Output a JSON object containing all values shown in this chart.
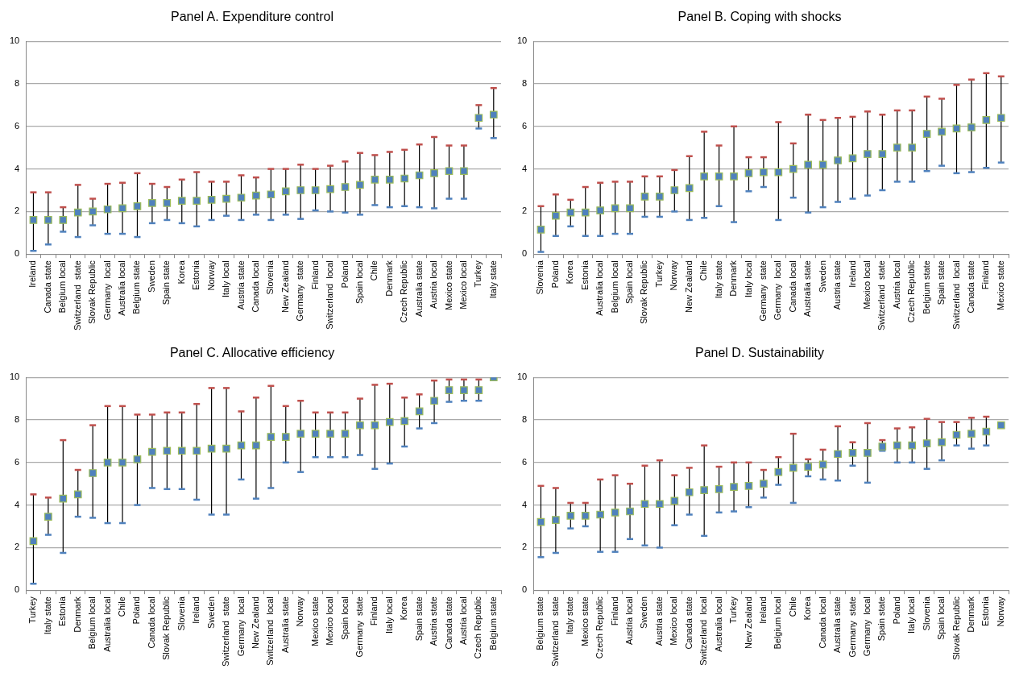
{
  "chart_data": [
    {
      "type": "scatter",
      "title": "Panel A. Expenditure control",
      "categories": [
        "Ireland",
        "Canada state",
        "Belgium local",
        "Switzerland  state",
        "Slovak Republic",
        "Germany  local",
        "Australia local",
        "Belgium state",
        "Sweden",
        "Spain state",
        "Korea",
        "Estonia",
        "Norway",
        "Italy local",
        "Austria state",
        "Canada local",
        "Slovenia",
        "New Zealand",
        "Germany  state",
        "Finland",
        "Switzerland  local",
        "Poland",
        "Spain local",
        "Chile",
        "Denmark",
        "Czech Republic",
        "Australia state",
        "Austria local",
        "Mexico state",
        "Mexico local",
        "Turkey",
        "Italy state"
      ],
      "series": [
        {
          "color": "#4f81bd",
          "values": [
            1.6,
            1.6,
            1.6,
            1.95,
            2.0,
            2.1,
            2.15,
            2.25,
            2.4,
            2.4,
            2.5,
            2.5,
            2.55,
            2.6,
            2.65,
            2.75,
            2.8,
            2.95,
            3.0,
            3.0,
            3.05,
            3.15,
            3.25,
            3.5,
            3.5,
            3.55,
            3.7,
            3.8,
            3.9,
            3.9,
            6.4,
            6.55
          ],
          "errors": [
            [
              0.15,
              2.9
            ],
            [
              0.45,
              2.9
            ],
            [
              1.05,
              2.2
            ],
            [
              0.8,
              3.25
            ],
            [
              1.35,
              2.6
            ],
            [
              0.95,
              3.3
            ],
            [
              0.95,
              3.35
            ],
            [
              0.8,
              3.8
            ],
            [
              1.45,
              3.3
            ],
            [
              1.6,
              3.15
            ],
            [
              1.45,
              3.5
            ],
            [
              1.3,
              3.85
            ],
            [
              1.6,
              3.4
            ],
            [
              1.8,
              3.4
            ],
            [
              1.6,
              3.7
            ],
            [
              1.85,
              3.6
            ],
            [
              1.6,
              4.0
            ],
            [
              1.85,
              4.0
            ],
            [
              1.65,
              4.2
            ],
            [
              2.05,
              4.0
            ],
            [
              2.0,
              4.15
            ],
            [
              1.95,
              4.35
            ],
            [
              1.85,
              4.75
            ],
            [
              2.3,
              4.65
            ],
            [
              2.2,
              4.8
            ],
            [
              2.25,
              4.9
            ],
            [
              2.2,
              5.15
            ],
            [
              2.15,
              5.5
            ],
            [
              2.6,
              5.1
            ],
            [
              2.6,
              5.1
            ],
            [
              5.9,
              7.0
            ],
            [
              5.45,
              7.8
            ]
          ]
        }
      ],
      "ylim": [
        0,
        10
      ],
      "yticks": [
        0,
        2,
        4,
        6,
        8,
        10
      ],
      "grid": "y",
      "legend": false,
      "marker": "square"
    },
    {
      "type": "scatter",
      "title": "Panel B. Coping with shocks",
      "categories": [
        "Slovenia",
        "Poland",
        "Korea",
        "Estonia",
        "Australia local",
        "Belgium local",
        "Spain local",
        "Slovak Republic",
        "Turkey",
        "Norway",
        "New Zealand",
        "Chile",
        "Italy state",
        "Denmark",
        "Italy local",
        "Germany  state",
        "Germany  local",
        "Canada local",
        "Australia state",
        "Sweden",
        "Austria state",
        "Ireland",
        "Mexico local",
        "Switzerland  state",
        "Austria local",
        "Czech Republic",
        "Belgium state",
        "Spain state",
        "Switzerland  local",
        "Canada state",
        "Finland",
        "Mexico state"
      ],
      "series": [
        {
          "color": "#4f81bd",
          "values": [
            1.15,
            1.8,
            1.95,
            1.95,
            2.05,
            2.15,
            2.15,
            2.7,
            2.7,
            3.0,
            3.1,
            3.65,
            3.65,
            3.65,
            3.8,
            3.85,
            3.85,
            4.0,
            4.2,
            4.2,
            4.4,
            4.5,
            4.7,
            4.7,
            5.0,
            5.0,
            5.65,
            5.75,
            5.9,
            5.95,
            6.3,
            6.4
          ],
          "errors": [
            [
              0.1,
              2.25
            ],
            [
              0.85,
              2.8
            ],
            [
              1.3,
              2.55
            ],
            [
              0.85,
              3.15
            ],
            [
              0.85,
              3.35
            ],
            [
              0.95,
              3.4
            ],
            [
              0.95,
              3.4
            ],
            [
              1.75,
              3.65
            ],
            [
              1.75,
              3.65
            ],
            [
              2.0,
              3.95
            ],
            [
              1.6,
              4.6
            ],
            [
              1.7,
              5.75
            ],
            [
              2.25,
              5.1
            ],
            [
              1.5,
              6.0
            ],
            [
              2.95,
              4.55
            ],
            [
              3.15,
              4.55
            ],
            [
              1.6,
              6.2
            ],
            [
              2.65,
              5.2
            ],
            [
              1.95,
              6.55
            ],
            [
              2.2,
              6.3
            ],
            [
              2.45,
              6.4
            ],
            [
              2.6,
              6.45
            ],
            [
              2.75,
              6.7
            ],
            [
              3.0,
              6.55
            ],
            [
              3.4,
              6.75
            ],
            [
              3.4,
              6.75
            ],
            [
              3.9,
              7.4
            ],
            [
              4.15,
              7.3
            ],
            [
              3.8,
              7.95
            ],
            [
              3.85,
              8.2
            ],
            [
              4.05,
              8.5
            ],
            [
              4.3,
              8.35
            ]
          ]
        }
      ],
      "ylim": [
        0,
        10
      ],
      "yticks": [
        0,
        2,
        4,
        6,
        8,
        10
      ],
      "grid": "y",
      "legend": false,
      "marker": "square"
    },
    {
      "type": "scatter",
      "title": "Panel C. Allocative efficiency",
      "categories": [
        "Turkey",
        "Italy state",
        "Estonia",
        "Denmark",
        "Belgium local",
        "Australia local",
        "Chile",
        "Poland",
        "Canada local",
        "Slovak Republic",
        "Slovenia",
        "Ireland",
        "Sweden",
        "Switzerland  state",
        "Germany  local",
        "New Zealand",
        "Switzerland  local",
        "Australia state",
        "Norway",
        "Mexico state",
        "Mexico local",
        "Spain local",
        "Germany  state",
        "Finland",
        "Italy local",
        "Korea",
        "Spain state",
        "Austria state",
        "Canada state",
        "Austria local",
        "Czech Republic",
        "Belgium state"
      ],
      "series": [
        {
          "color": "#4f81bd",
          "values": [
            2.3,
            3.45,
            4.3,
            4.5,
            5.5,
            6.0,
            6.0,
            6.15,
            6.5,
            6.55,
            6.55,
            6.55,
            6.65,
            6.65,
            6.8,
            6.8,
            7.2,
            7.2,
            7.35,
            7.35,
            7.35,
            7.35,
            7.75,
            7.75,
            7.9,
            7.95,
            8.4,
            8.9,
            9.4,
            9.4,
            9.4,
            10
          ],
          "errors": [
            [
              0.3,
              4.5
            ],
            [
              2.6,
              4.35
            ],
            [
              1.75,
              7.05
            ],
            [
              3.45,
              5.65
            ],
            [
              3.4,
              7.75
            ],
            [
              3.15,
              8.65
            ],
            [
              3.15,
              8.65
            ],
            [
              4.0,
              8.25
            ],
            [
              4.8,
              8.25
            ],
            [
              4.75,
              8.35
            ],
            [
              4.75,
              8.35
            ],
            [
              4.25,
              8.75
            ],
            [
              3.55,
              9.5
            ],
            [
              3.55,
              9.5
            ],
            [
              5.2,
              8.4
            ],
            [
              4.3,
              9.05
            ],
            [
              4.8,
              9.6
            ],
            [
              6.0,
              8.65
            ],
            [
              5.55,
              8.9
            ],
            [
              6.25,
              8.35
            ],
            [
              6.25,
              8.35
            ],
            [
              6.25,
              8.35
            ],
            [
              6.35,
              9.0
            ],
            [
              5.7,
              9.65
            ],
            [
              5.95,
              9.7
            ],
            [
              6.75,
              9.05
            ],
            [
              7.6,
              9.2
            ],
            [
              7.85,
              9.85
            ],
            [
              8.85,
              9.9
            ],
            [
              8.9,
              9.9
            ],
            [
              8.9,
              9.9
            ],
            null
          ]
        }
      ],
      "ylim": [
        0,
        10
      ],
      "yticks": [
        0,
        2,
        4,
        6,
        8,
        10
      ],
      "grid": "y",
      "legend": false,
      "marker": "square"
    },
    {
      "type": "scatter",
      "title": "Panel D. Sustainability",
      "categories": [
        "Belgium state",
        "Switzerland  state",
        "Italy state",
        "Mexico state",
        "Czech Republic",
        "Finland",
        "Austria local",
        "Sweden",
        "Austria state",
        "Mexico local",
        "Canada state",
        "Switzerland  local",
        "Australia local",
        "Turkey",
        "New Zealand",
        "Ireland",
        "Belgium local",
        "Chile",
        "Korea",
        "Canada local",
        "Australia state",
        "Germany  state",
        "Germany  local",
        "Spain state",
        "Poland",
        "Italy local",
        "Slovenia",
        "Spain local",
        "Slovak Republic",
        "Denmark",
        "Estonia",
        "Norway"
      ],
      "series": [
        {
          "color": "#4f81bd",
          "values": [
            3.2,
            3.3,
            3.5,
            3.5,
            3.55,
            3.65,
            3.7,
            4.05,
            4.05,
            4.2,
            4.6,
            4.7,
            4.75,
            4.85,
            4.9,
            5.0,
            5.55,
            5.75,
            5.8,
            5.9,
            6.4,
            6.45,
            6.45,
            6.75,
            6.8,
            6.8,
            6.9,
            6.95,
            7.3,
            7.35,
            7.45,
            7.75
          ],
          "errors": [
            [
              1.55,
              4.9
            ],
            [
              1.75,
              4.8
            ],
            [
              2.9,
              4.1
            ],
            [
              3.0,
              4.1
            ],
            [
              1.8,
              5.2
            ],
            [
              1.8,
              5.4
            ],
            [
              2.4,
              5.0
            ],
            [
              2.1,
              5.85
            ],
            [
              2.0,
              6.1
            ],
            [
              3.05,
              5.4
            ],
            [
              3.55,
              5.75
            ],
            [
              2.55,
              6.8
            ],
            [
              3.65,
              5.8
            ],
            [
              3.7,
              6.0
            ],
            [
              3.9,
              6.0
            ],
            [
              4.35,
              5.65
            ],
            [
              4.95,
              6.25
            ],
            [
              4.1,
              7.35
            ],
            [
              5.35,
              6.15
            ],
            [
              5.2,
              6.6
            ],
            [
              5.15,
              7.7
            ],
            [
              5.85,
              6.95
            ],
            [
              5.05,
              7.85
            ],
            [
              6.55,
              7.05
            ],
            [
              6.0,
              7.6
            ],
            [
              6.0,
              7.65
            ],
            [
              5.7,
              8.05
            ],
            [
              6.1,
              7.9
            ],
            [
              6.8,
              7.9
            ],
            [
              6.65,
              8.1
            ],
            [
              6.8,
              8.15
            ],
            null
          ]
        }
      ],
      "ylim": [
        0,
        10
      ],
      "yticks": [
        0,
        2,
        4,
        6,
        8,
        10
      ],
      "grid": "y",
      "legend": false,
      "marker": "square"
    }
  ]
}
